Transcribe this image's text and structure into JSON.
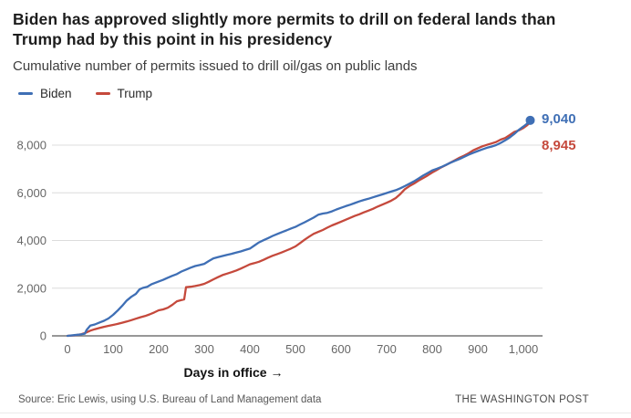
{
  "header": {
    "title_line1": "Biden has approved slightly more permits to drill on federal lands than",
    "title_line2": "Trump had by this point in his presidency",
    "subtitle": "Cumulative number of permits issued to drill oil/gas on public lands"
  },
  "legend": [
    {
      "label": "Biden",
      "color": "#3f6fb5"
    },
    {
      "label": "Trump",
      "color": "#c5493c"
    }
  ],
  "chart_data": {
    "type": "line",
    "title": "Biden has approved slightly more permits to drill on federal lands than Trump had by this point in his presidency",
    "subtitle": "Cumulative number of permits issued to drill oil/gas on public lands",
    "xlabel": "Days in office →",
    "ylabel": "",
    "xlim": [
      0,
      1040
    ],
    "ylim": [
      0,
      9400
    ],
    "grid": "horizontal",
    "legend_position": "top-left",
    "x_ticks": [
      {
        "value": 0,
        "label": "0"
      },
      {
        "value": 100,
        "label": "100"
      },
      {
        "value": 200,
        "label": "200"
      },
      {
        "value": 300,
        "label": "300"
      },
      {
        "value": 400,
        "label": "400"
      },
      {
        "value": 500,
        "label": "500"
      },
      {
        "value": 600,
        "label": "600"
      },
      {
        "value": 700,
        "label": "700"
      },
      {
        "value": 800,
        "label": "800"
      },
      {
        "value": 900,
        "label": "900"
      },
      {
        "value": 1000,
        "label": "1,000"
      }
    ],
    "y_ticks": [
      {
        "value": 0,
        "label": "0"
      },
      {
        "value": 2000,
        "label": "2,000"
      },
      {
        "value": 4000,
        "label": "4,000"
      },
      {
        "value": 6000,
        "label": "6,000"
      },
      {
        "value": 8000,
        "label": "8,000"
      }
    ],
    "series": [
      {
        "name": "Trump",
        "color": "#c5493c",
        "end_value": 8945,
        "end_label": "8,945",
        "end_dot": false,
        "points": [
          [
            0,
            0
          ],
          [
            15,
            20
          ],
          [
            30,
            70
          ],
          [
            40,
            130
          ],
          [
            50,
            220
          ],
          [
            60,
            280
          ],
          [
            70,
            330
          ],
          [
            80,
            380
          ],
          [
            90,
            420
          ],
          [
            100,
            460
          ],
          [
            110,
            500
          ],
          [
            120,
            550
          ],
          [
            130,
            600
          ],
          [
            140,
            660
          ],
          [
            150,
            720
          ],
          [
            160,
            780
          ],
          [
            170,
            830
          ],
          [
            180,
            900
          ],
          [
            190,
            980
          ],
          [
            200,
            1070
          ],
          [
            210,
            1110
          ],
          [
            220,
            1180
          ],
          [
            230,
            1300
          ],
          [
            240,
            1450
          ],
          [
            250,
            1500
          ],
          [
            256,
            1530
          ],
          [
            260,
            2040
          ],
          [
            270,
            2060
          ],
          [
            280,
            2090
          ],
          [
            290,
            2130
          ],
          [
            300,
            2180
          ],
          [
            310,
            2270
          ],
          [
            320,
            2370
          ],
          [
            330,
            2460
          ],
          [
            340,
            2550
          ],
          [
            350,
            2610
          ],
          [
            360,
            2670
          ],
          [
            370,
            2740
          ],
          [
            380,
            2820
          ],
          [
            390,
            2910
          ],
          [
            400,
            3000
          ],
          [
            410,
            3050
          ],
          [
            420,
            3110
          ],
          [
            430,
            3190
          ],
          [
            440,
            3280
          ],
          [
            450,
            3360
          ],
          [
            460,
            3430
          ],
          [
            470,
            3500
          ],
          [
            480,
            3580
          ],
          [
            490,
            3660
          ],
          [
            500,
            3750
          ],
          [
            510,
            3890
          ],
          [
            520,
            4030
          ],
          [
            530,
            4160
          ],
          [
            540,
            4280
          ],
          [
            550,
            4360
          ],
          [
            560,
            4440
          ],
          [
            570,
            4540
          ],
          [
            580,
            4630
          ],
          [
            590,
            4710
          ],
          [
            600,
            4790
          ],
          [
            610,
            4870
          ],
          [
            620,
            4950
          ],
          [
            630,
            5030
          ],
          [
            640,
            5100
          ],
          [
            650,
            5180
          ],
          [
            660,
            5250
          ],
          [
            670,
            5330
          ],
          [
            680,
            5420
          ],
          [
            690,
            5500
          ],
          [
            700,
            5580
          ],
          [
            710,
            5670
          ],
          [
            720,
            5780
          ],
          [
            730,
            5950
          ],
          [
            740,
            6150
          ],
          [
            750,
            6280
          ],
          [
            760,
            6390
          ],
          [
            770,
            6510
          ],
          [
            780,
            6620
          ],
          [
            790,
            6730
          ],
          [
            800,
            6850
          ],
          [
            810,
            6960
          ],
          [
            820,
            7070
          ],
          [
            830,
            7160
          ],
          [
            840,
            7270
          ],
          [
            850,
            7370
          ],
          [
            860,
            7470
          ],
          [
            870,
            7560
          ],
          [
            880,
            7660
          ],
          [
            890,
            7780
          ],
          [
            900,
            7870
          ],
          [
            910,
            7950
          ],
          [
            920,
            8010
          ],
          [
            930,
            8070
          ],
          [
            940,
            8130
          ],
          [
            950,
            8230
          ],
          [
            960,
            8300
          ],
          [
            970,
            8420
          ],
          [
            980,
            8550
          ],
          [
            990,
            8620
          ],
          [
            1000,
            8720
          ],
          [
            1008,
            8830
          ],
          [
            1015,
            8945
          ]
        ]
      },
      {
        "name": "Biden",
        "color": "#3f6fb5",
        "end_value": 9040,
        "end_label": "9,040",
        "end_dot": true,
        "points": [
          [
            0,
            0
          ],
          [
            15,
            30
          ],
          [
            30,
            60
          ],
          [
            38,
            90
          ],
          [
            42,
            250
          ],
          [
            50,
            430
          ],
          [
            60,
            480
          ],
          [
            70,
            560
          ],
          [
            80,
            630
          ],
          [
            90,
            730
          ],
          [
            100,
            880
          ],
          [
            110,
            1060
          ],
          [
            120,
            1260
          ],
          [
            130,
            1480
          ],
          [
            140,
            1640
          ],
          [
            150,
            1760
          ],
          [
            158,
            1950
          ],
          [
            165,
            2010
          ],
          [
            175,
            2060
          ],
          [
            185,
            2170
          ],
          [
            200,
            2280
          ],
          [
            210,
            2350
          ],
          [
            220,
            2440
          ],
          [
            230,
            2520
          ],
          [
            240,
            2590
          ],
          [
            250,
            2700
          ],
          [
            260,
            2780
          ],
          [
            270,
            2860
          ],
          [
            280,
            2930
          ],
          [
            290,
            2970
          ],
          [
            300,
            3020
          ],
          [
            310,
            3140
          ],
          [
            320,
            3250
          ],
          [
            330,
            3300
          ],
          [
            340,
            3350
          ],
          [
            350,
            3400
          ],
          [
            360,
            3440
          ],
          [
            370,
            3490
          ],
          [
            380,
            3540
          ],
          [
            390,
            3600
          ],
          [
            400,
            3660
          ],
          [
            410,
            3790
          ],
          [
            420,
            3920
          ],
          [
            430,
            4010
          ],
          [
            440,
            4100
          ],
          [
            450,
            4190
          ],
          [
            460,
            4270
          ],
          [
            470,
            4350
          ],
          [
            480,
            4420
          ],
          [
            490,
            4500
          ],
          [
            500,
            4570
          ],
          [
            510,
            4670
          ],
          [
            520,
            4760
          ],
          [
            530,
            4860
          ],
          [
            540,
            4960
          ],
          [
            550,
            5080
          ],
          [
            560,
            5130
          ],
          [
            570,
            5160
          ],
          [
            580,
            5220
          ],
          [
            590,
            5300
          ],
          [
            600,
            5370
          ],
          [
            610,
            5440
          ],
          [
            620,
            5500
          ],
          [
            630,
            5570
          ],
          [
            640,
            5640
          ],
          [
            650,
            5700
          ],
          [
            660,
            5750
          ],
          [
            670,
            5810
          ],
          [
            680,
            5870
          ],
          [
            690,
            5930
          ],
          [
            700,
            5990
          ],
          [
            710,
            6050
          ],
          [
            720,
            6110
          ],
          [
            730,
            6190
          ],
          [
            740,
            6280
          ],
          [
            750,
            6380
          ],
          [
            760,
            6480
          ],
          [
            770,
            6600
          ],
          [
            780,
            6720
          ],
          [
            790,
            6830
          ],
          [
            800,
            6940
          ],
          [
            810,
            7010
          ],
          [
            820,
            7080
          ],
          [
            830,
            7170
          ],
          [
            840,
            7260
          ],
          [
            850,
            7340
          ],
          [
            860,
            7420
          ],
          [
            870,
            7510
          ],
          [
            880,
            7600
          ],
          [
            890,
            7680
          ],
          [
            900,
            7750
          ],
          [
            910,
            7820
          ],
          [
            920,
            7890
          ],
          [
            930,
            7940
          ],
          [
            940,
            8000
          ],
          [
            950,
            8090
          ],
          [
            960,
            8200
          ],
          [
            970,
            8320
          ],
          [
            980,
            8470
          ],
          [
            990,
            8640
          ],
          [
            1000,
            8780
          ],
          [
            1008,
            8900
          ],
          [
            1015,
            9040
          ]
        ]
      }
    ]
  },
  "footer": {
    "source": "Source: Eric Lewis, using U.S. Bureau of Land Management data",
    "credit": "THE WASHINGTON POST"
  }
}
